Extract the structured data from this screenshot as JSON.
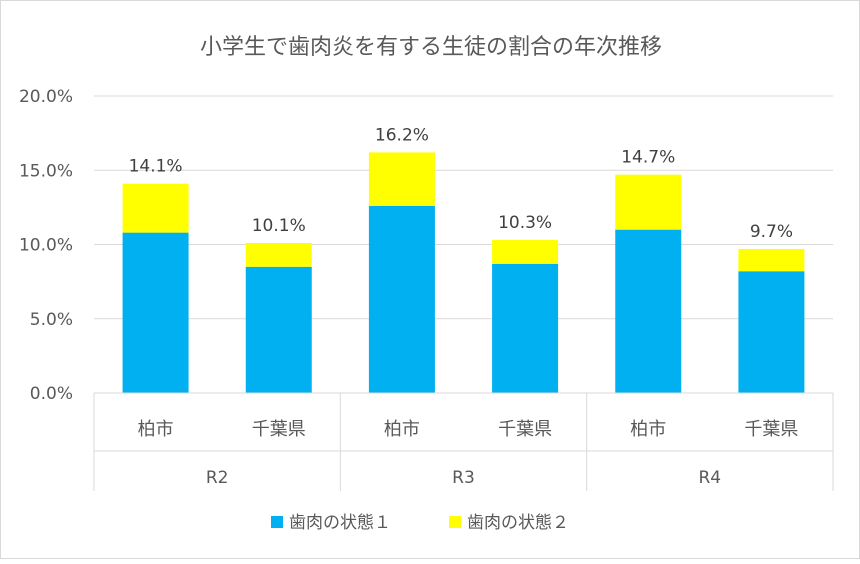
{
  "chart_data": {
    "type": "bar",
    "stacked": true,
    "title": "小学生で歯肉炎を有する生徒の割合の年次推移",
    "groups": [
      "R2",
      "R3",
      "R4"
    ],
    "categories": [
      "柏市",
      "千葉県",
      "柏市",
      "千葉県",
      "柏市",
      "千葉県"
    ],
    "series": [
      {
        "name": "歯肉の状態１",
        "color": "#00b0f0",
        "values": [
          10.8,
          8.5,
          12.6,
          8.7,
          11.0,
          8.2
        ]
      },
      {
        "name": "歯肉の状態２",
        "color": "#ffff00",
        "values": [
          3.3,
          1.6,
          3.6,
          1.6,
          3.7,
          1.5
        ]
      }
    ],
    "totals": [
      14.1,
      10.1,
      16.2,
      10.3,
      14.7,
      9.7
    ],
    "total_labels": [
      "14.1%",
      "10.1%",
      "16.2%",
      "10.3%",
      "14.7%",
      "9.7%"
    ],
    "ylim": [
      0,
      20
    ],
    "yticks": [
      0,
      5,
      10,
      15,
      20
    ],
    "ytick_labels": [
      "0.0%",
      "5.0%",
      "10.0%",
      "15.0%",
      "20.0%"
    ],
    "grid": true,
    "legend_position": "bottom"
  }
}
